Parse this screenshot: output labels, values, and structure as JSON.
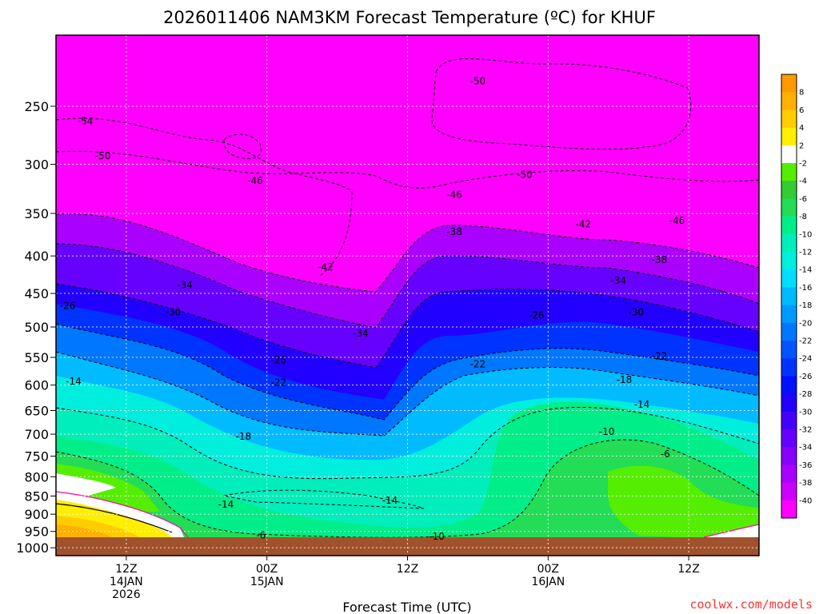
{
  "chart_data": {
    "type": "heatmap",
    "title": "2026011406 NAM3KM Forecast Temperature (ºC) for KHUF",
    "xlabel": "Forecast Time (UTC)",
    "ylabel": "",
    "x_ticks": [
      {
        "lines": [
          "12Z",
          "14JAN",
          "2026"
        ],
        "hours": 6
      },
      {
        "lines": [
          "00Z",
          "15JAN"
        ],
        "hours": 18
      },
      {
        "lines": [
          "12Z"
        ],
        "hours": 30
      },
      {
        "lines": [
          "00Z",
          "16JAN"
        ],
        "hours": 42
      },
      {
        "lines": [
          "12Z"
        ],
        "hours": 54
      }
    ],
    "x_range_hours": [
      0,
      60
    ],
    "y_ticks": [
      "250",
      "300",
      "350",
      "400",
      "450",
      "500",
      "550",
      "600",
      "650",
      "700",
      "750",
      "800",
      "850",
      "900",
      "950",
      "1000"
    ],
    "y_range_hpa": [
      200,
      1025
    ],
    "y_scale": "log",
    "grid": true,
    "colorbar": {
      "labels": [
        "8",
        "6",
        "4",
        "2",
        "-2",
        "-4",
        "-6",
        "-8",
        "-10",
        "-12",
        "-14",
        "-16",
        "-18",
        "-20",
        "-22",
        "-24",
        "-26",
        "-28",
        "-30",
        "-32",
        "-34",
        "-36",
        "-38",
        "-40"
      ],
      "colors": [
        "#ff9900",
        "#ffb000",
        "#ffcc00",
        "#ffee00",
        "#ffffff",
        "#55ee00",
        "#33cc33",
        "#22dd55",
        "#00ee88",
        "#00eebb",
        "#00eedd",
        "#00ddff",
        "#00bbff",
        "#0099ff",
        "#0077ff",
        "#0055ff",
        "#0033ff",
        "#0011ff",
        "#2200ff",
        "#4400ff",
        "#6600ff",
        "#8800ff",
        "#aa00ff",
        "#cc00ff",
        "#ff00ff"
      ]
    },
    "contour_labels": [
      {
        "text": "-54",
        "hours": 2.5,
        "p": 262
      },
      {
        "text": "-50",
        "hours": 4.0,
        "p": 292
      },
      {
        "text": "-46",
        "hours": 17.0,
        "p": 316
      },
      {
        "text": "-42",
        "hours": 23.0,
        "p": 414
      },
      {
        "text": "-38",
        "hours": 34.0,
        "p": 371
      },
      {
        "text": "-34",
        "hours": 11.0,
        "p": 438
      },
      {
        "text": "-30",
        "hours": 10.0,
        "p": 477
      },
      {
        "text": "-26",
        "hours": 1.0,
        "p": 468
      },
      {
        "text": "-34",
        "hours": 26.0,
        "p": 510
      },
      {
        "text": "-26",
        "hours": 19.0,
        "p": 555
      },
      {
        "text": "-22",
        "hours": 19.0,
        "p": 595
      },
      {
        "text": "-22",
        "hours": 36.0,
        "p": 562
      },
      {
        "text": "-14",
        "hours": 1.5,
        "p": 593
      },
      {
        "text": "-18",
        "hours": 16.0,
        "p": 705
      },
      {
        "text": "-14",
        "hours": 14.5,
        "p": 873
      },
      {
        "text": "-14",
        "hours": 28.5,
        "p": 862
      },
      {
        "text": "-10",
        "hours": 32.5,
        "p": 965
      },
      {
        "text": "-6",
        "hours": 17.5,
        "p": 962
      },
      {
        "text": "-50",
        "hours": 36.0,
        "p": 231
      },
      {
        "text": "-50",
        "hours": 40.0,
        "p": 310
      },
      {
        "text": "-46",
        "hours": 34.0,
        "p": 330
      },
      {
        "text": "-42",
        "hours": 45.0,
        "p": 362
      },
      {
        "text": "-46",
        "hours": 53.0,
        "p": 358
      },
      {
        "text": "-38",
        "hours": 51.5,
        "p": 405
      },
      {
        "text": "-34",
        "hours": 48.0,
        "p": 432
      },
      {
        "text": "-30",
        "hours": 49.5,
        "p": 477
      },
      {
        "text": "-26",
        "hours": 41.0,
        "p": 482
      },
      {
        "text": "-22",
        "hours": 51.5,
        "p": 548
      },
      {
        "text": "-18",
        "hours": 48.5,
        "p": 590
      },
      {
        "text": "-14",
        "hours": 50.0,
        "p": 638
      },
      {
        "text": "-10",
        "hours": 47.0,
        "p": 695
      },
      {
        "text": "-6",
        "hours": 52.0,
        "p": 745
      }
    ]
  },
  "credit": "coolwx.com/models"
}
